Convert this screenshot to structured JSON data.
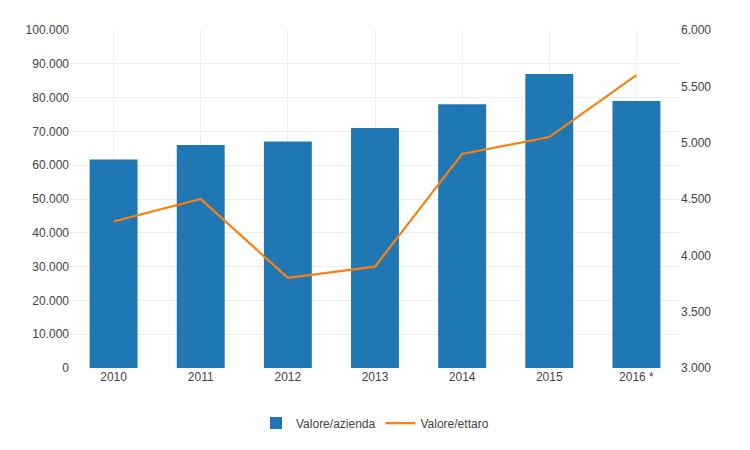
{
  "chart_data": {
    "type": "bar",
    "categories": [
      "2010",
      "2011",
      "2012",
      "2013",
      "2014",
      "2015",
      "2016 *"
    ],
    "series": [
      {
        "name": "Valore/azienda",
        "type": "bar",
        "values": [
          61707,
          66000,
          67000,
          71000,
          78000,
          87000,
          79000
        ]
      },
      {
        "name": "Valore/ettaro",
        "type": "line",
        "axis": "y2",
        "values": [
          4300,
          4500,
          3800,
          3900,
          4900,
          5050,
          5600
        ]
      }
    ],
    "ylim": [
      0,
      100000
    ],
    "yticks": [
      0,
      {
        "value": 10000,
        "label": "10.000"
      },
      {
        "value": 20000,
        "label": "20.000"
      },
      {
        "value": 30000,
        "label": "30.000"
      },
      {
        "value": 40000,
        "label": "40.000"
      },
      {
        "value": 50000,
        "label": "50.000"
      },
      {
        "value": 60000,
        "label": "60.000"
      },
      {
        "value": 70000,
        "label": "70.000"
      },
      {
        "value": 80000,
        "label": "80.000"
      },
      {
        "value": 90000,
        "label": "90.000"
      },
      {
        "value": 100000,
        "label": "100.000"
      }
    ],
    "y2lim": [
      3000,
      6000
    ],
    "y2ticks": [
      {
        "value": 3000,
        "label": "3.000"
      },
      {
        "value": 3500,
        "label": "3.500"
      },
      {
        "value": 4000,
        "label": "4.000"
      },
      {
        "value": 4500,
        "label": "4.500"
      },
      {
        "value": 5000,
        "label": "5.000"
      },
      {
        "value": 5500,
        "label": "5.500"
      },
      {
        "value": 6000,
        "label": "6.000"
      }
    ],
    "grid": true,
    "legend": "bottom"
  }
}
